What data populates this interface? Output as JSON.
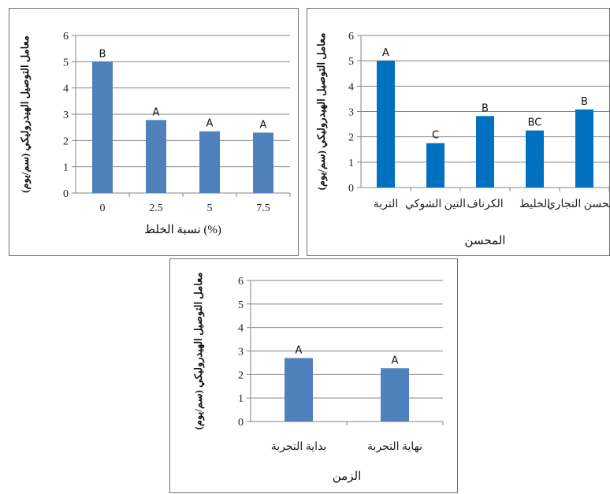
{
  "chart_data": [
    {
      "type": "bar",
      "color": "#4f81bd",
      "ylabel": "معامل التوصيل الهيدروليكي (سم/يوم)",
      "xlabel": "نسبة الخلط (%)",
      "ylim": [
        0,
        6
      ],
      "yticks": [
        0,
        1,
        2,
        3,
        4,
        5,
        6
      ],
      "grid": true,
      "categories": [
        "0",
        "2.5",
        "5",
        "7.5"
      ],
      "values": [
        5.0,
        2.78,
        2.35,
        2.3
      ],
      "labels": [
        "B",
        "A",
        "A",
        "A"
      ]
    },
    {
      "type": "bar",
      "color": "#0070c0",
      "ylabel": "معامل التوصيل الهيدروليكي (سم/يوم)",
      "xlabel": "المحسن",
      "ylim": [
        0,
        6
      ],
      "yticks": [
        0,
        1,
        2,
        3,
        4,
        5,
        6
      ],
      "grid": true,
      "categories": [
        "التربة",
        "التين الشوكي",
        "الكرناف",
        "الخليط",
        "المحسن التجاري"
      ],
      "values": [
        5.0,
        1.75,
        2.82,
        2.25,
        3.08
      ],
      "labels": [
        "A",
        "C",
        "B",
        "BC",
        "B"
      ]
    },
    {
      "type": "bar",
      "color": "#4f81bd",
      "ylabel": "معامل التوصيل الهيدروليكي (سم/يوم)",
      "xlabel": "الزمن",
      "ylim": [
        0,
        6
      ],
      "yticks": [
        0,
        1,
        2,
        3,
        4,
        5,
        6
      ],
      "grid": true,
      "categories": [
        "بداية التجربة",
        "نهاية التجربة"
      ],
      "values": [
        2.7,
        2.27
      ],
      "labels": [
        "A",
        "A"
      ]
    }
  ]
}
